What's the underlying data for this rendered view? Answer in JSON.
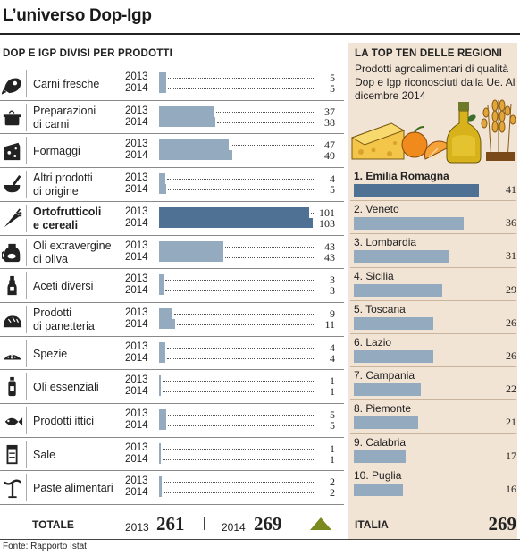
{
  "title": "L’universo Dop-Igp",
  "source": "Fonte: Rapporto Istat",
  "chart_data": [
    {
      "type": "bar",
      "title": "DOP E IGP DIVISI PER PRODOTTI",
      "orientation": "horizontal",
      "series_years": [
        "2013",
        "2014"
      ],
      "xlim": [
        0,
        105
      ],
      "categories": [
        {
          "label": "Carni fresche",
          "label_lines": [
            "Carni fresche"
          ],
          "icon": "meat-icon",
          "v2013": 5,
          "v2014": 5,
          "highlight": false
        },
        {
          "label": "Preparazioni di carni",
          "label_lines": [
            "Preparazioni",
            "di carni"
          ],
          "icon": "pot-icon",
          "v2013": 37,
          "v2014": 38,
          "highlight": false
        },
        {
          "label": "Formaggi",
          "label_lines": [
            "Formaggi"
          ],
          "icon": "cheese-icon",
          "v2013": 47,
          "v2014": 49,
          "highlight": false
        },
        {
          "label": "Altri prodotti di origine",
          "label_lines": [
            "Altri prodotti",
            "di origine"
          ],
          "icon": "mortar-icon",
          "v2013": 4,
          "v2014": 5,
          "highlight": false
        },
        {
          "label": "Ortofrutticoli e cereali",
          "label_lines": [
            "Ortofrutticoli",
            "e cereali"
          ],
          "icon": "carrot-icon",
          "v2013": 101,
          "v2014": 103,
          "highlight": true
        },
        {
          "label": "Oli extravergine di oliva",
          "label_lines": [
            "Oli extravergine",
            "di oliva"
          ],
          "icon": "oil-jar-icon",
          "v2013": 43,
          "v2014": 43,
          "highlight": false
        },
        {
          "label": "Aceti diversi",
          "label_lines": [
            "Aceti diversi"
          ],
          "icon": "vinegar-bottle-icon",
          "v2013": 3,
          "v2014": 3,
          "highlight": false
        },
        {
          "label": "Prodotti di panetteria",
          "label_lines": [
            "Prodotti",
            "di panetteria"
          ],
          "icon": "bread-icon",
          "v2013": 9,
          "v2014": 11,
          "highlight": false
        },
        {
          "label": "Spezie",
          "label_lines": [
            "Spezie"
          ],
          "icon": "spice-icon",
          "v2013": 4,
          "v2014": 4,
          "highlight": false
        },
        {
          "label": "Oli essenziali",
          "label_lines": [
            "Oli essenziali"
          ],
          "icon": "essential-oil-icon",
          "v2013": 1,
          "v2014": 1,
          "highlight": false
        },
        {
          "label": "Prodotti ittici",
          "label_lines": [
            "Prodotti ittici"
          ],
          "icon": "fish-icon",
          "v2013": 5,
          "v2014": 5,
          "highlight": false
        },
        {
          "label": "Sale",
          "label_lines": [
            "Sale"
          ],
          "icon": "salt-icon",
          "v2013": 1,
          "v2014": 1,
          "highlight": false
        },
        {
          "label": "Paste alimentari",
          "label_lines": [
            "Paste alimentari"
          ],
          "icon": "pasta-icon",
          "v2013": 2,
          "v2014": 2,
          "highlight": false
        }
      ],
      "totals": {
        "label": "TOTALE",
        "y2013": "2013",
        "v2013": 261,
        "y2014": "2014",
        "v2014": 269,
        "trend": "up"
      },
      "colors": {
        "bar": "#94abbf",
        "highlight": "#4f7294",
        "trend": "#7a8a1e"
      }
    },
    {
      "type": "bar",
      "title": "LA TOP TEN DELLE REGIONI",
      "subtitle": "Prodotti agroalimentari di qualità Dop e Igp riconosciuti  dalla Ue. Al dicembre 2014",
      "orientation": "horizontal",
      "xlim": [
        0,
        44
      ],
      "regions": [
        {
          "label": "1. Emilia Romagna",
          "value": 41,
          "highlight": true
        },
        {
          "label": "2. Veneto",
          "value": 36,
          "highlight": false
        },
        {
          "label": "3. Lombardia",
          "value": 31,
          "highlight": false
        },
        {
          "label": "4. Sicilia",
          "value": 29,
          "highlight": false
        },
        {
          "label": "5. Toscana",
          "value": 26,
          "highlight": false
        },
        {
          "label": "6. Lazio",
          "value": 26,
          "highlight": false
        },
        {
          "label": "7. Campania",
          "value": 22,
          "highlight": false
        },
        {
          "label": "8. Piemonte",
          "value": 21,
          "highlight": false
        },
        {
          "label": "9. Calabria",
          "value": 17,
          "highlight": false
        },
        {
          "label": "10. Puglia",
          "value": 16,
          "highlight": false
        }
      ],
      "total": {
        "label": "ITALIA",
        "value": 269
      },
      "colors": {
        "panel": "#f2e4d4",
        "bar": "#94abbf",
        "highlight": "#4f7294"
      }
    }
  ]
}
